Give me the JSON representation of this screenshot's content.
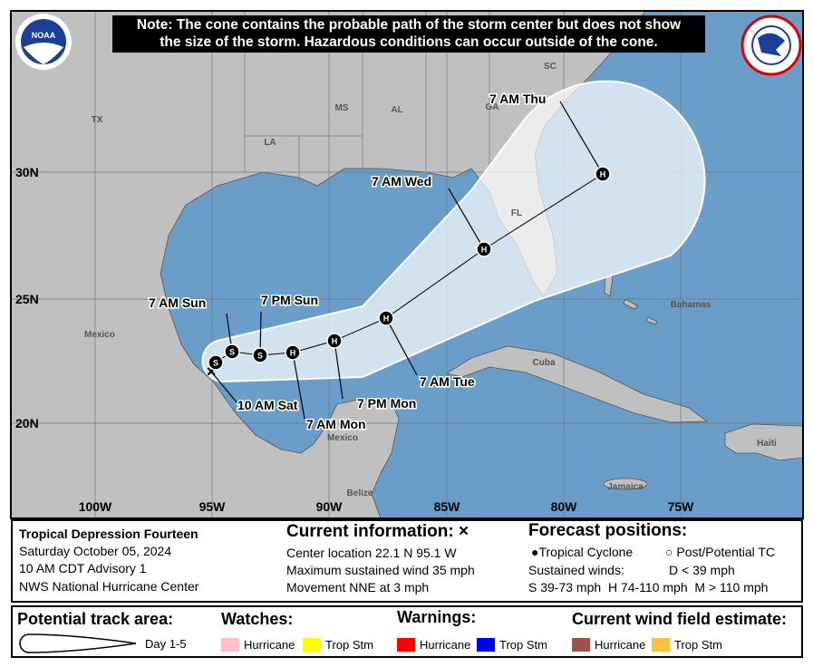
{
  "note": {
    "line1": "Note: The cone contains the probable path of the storm center but does not show",
    "line2": "the size of the storm. Hazardous conditions can occur outside of the cone."
  },
  "logos": {
    "left": "NOAA",
    "right": "National Weather Service"
  },
  "map": {
    "lat_labels": [
      "30N",
      "25N",
      "20N"
    ],
    "lon_labels": [
      "100W",
      "95W",
      "90W",
      "85W",
      "80W",
      "75W"
    ],
    "places": {
      "tx": "TX",
      "la": "LA",
      "ms": "MS",
      "al": "AL",
      "ga": "GA",
      "sc": "SC",
      "fl": "FL",
      "mexico1": "Mexico",
      "mexico2": "Mexico",
      "cuba": "Cuba",
      "bahamas": "Bahamas",
      "haiti": "Haiti",
      "jamaica": "Jamaica",
      "belize": "Belize"
    },
    "track": [
      {
        "label": "10 AM Sat",
        "symbol": "x",
        "lat": 22.1,
        "lon": -95.1
      },
      {
        "label": "",
        "symbol": "S",
        "lat": 22.5,
        "lon": -94.9
      },
      {
        "label": "7 AM Sun",
        "symbol": "S",
        "lat": 22.9,
        "lon": -94.2
      },
      {
        "label": "7 PM Sun",
        "symbol": "S",
        "lat": 22.8,
        "lon": -93.0
      },
      {
        "label": "7 AM Mon",
        "symbol": "H",
        "lat": 22.9,
        "lon": -91.6
      },
      {
        "label": "7 PM Mon",
        "symbol": "H",
        "lat": 23.4,
        "lon": -89.8
      },
      {
        "label": "7 AM Tue",
        "symbol": "H",
        "lat": 24.3,
        "lon": -87.6
      },
      {
        "label": "7 AM Wed",
        "symbol": "H",
        "lat": 27.0,
        "lon": -83.5
      },
      {
        "label": "7 AM Thu",
        "symbol": "H",
        "lat": 30.0,
        "lon": -78.4
      }
    ],
    "colors": {
      "water": "#6a9ec9",
      "land": "#c0c0c0",
      "cone": "#dde9f3"
    }
  },
  "info": {
    "storm_name": "Tropical Depression Fourteen",
    "date": "Saturday October 05, 2024",
    "advisory": "10 AM CDT Advisory 1",
    "agency": "NWS National Hurricane Center",
    "current_title": "Current information: ×",
    "center": "Center location 22.1 N 95.1 W",
    "wind": "Maximum sustained wind 35 mph",
    "movement": "Movement NNE at 3 mph",
    "forecast_title": "Forecast positions:",
    "tc": "Tropical Cyclone",
    "ptc": "Post/Potential TC",
    "sustained": "Sustained winds:",
    "d": "D < 39 mph",
    "shm": "S 39-73 mph  H 74-110 mph  M > 110 mph"
  },
  "legend": {
    "track_title": "Potential track area:",
    "day": "Day 1-5",
    "watches": "Watches:",
    "warnings": "Warnings:",
    "wind_field": "Current wind field estimate:",
    "items": [
      {
        "label": "Hurricane",
        "color": "#ffc0cb"
      },
      {
        "label": "Trop Stm",
        "color": "#ffff00"
      },
      {
        "label": "Hurricane",
        "color": "#ff0000"
      },
      {
        "label": "Trop Stm",
        "color": "#0000ff"
      },
      {
        "label": "Hurricane",
        "color": "#a05050"
      },
      {
        "label": "Trop Stm",
        "color": "#ffc040"
      }
    ]
  }
}
